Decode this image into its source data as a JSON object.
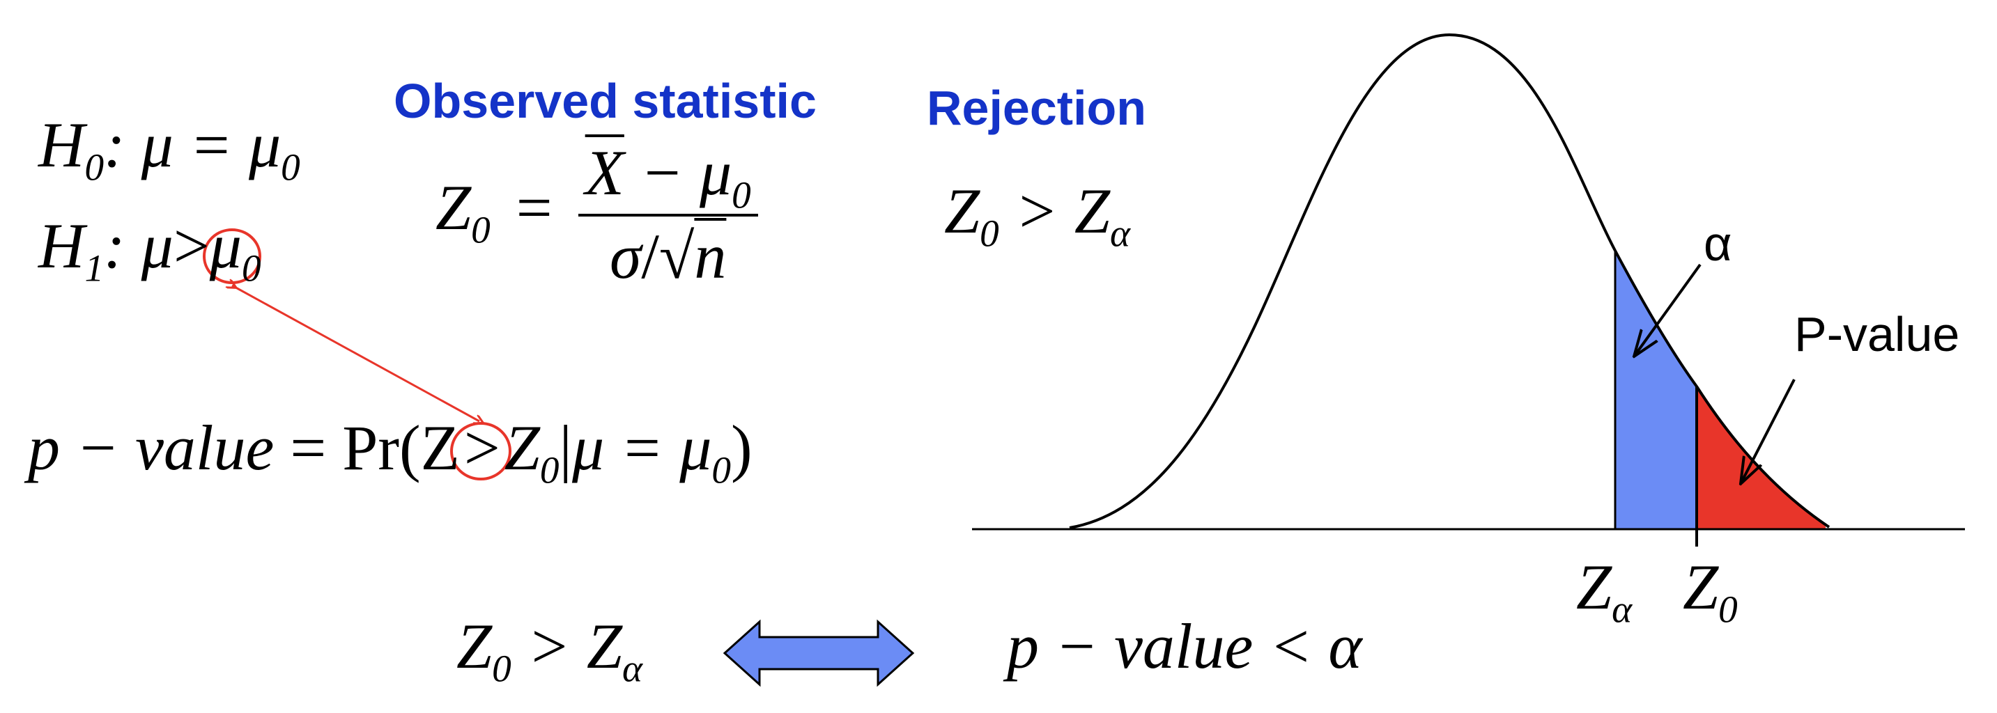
{
  "hypotheses": {
    "h0": {
      "symbol": "H",
      "sub": "0",
      "rel": ": μ = μ",
      "rel_sub": "0"
    },
    "h1": {
      "symbol": "H",
      "sub": "1",
      "rel_pre": ": μ",
      "gt": ">",
      "rel_post": "μ",
      "rel_sub": "0"
    }
  },
  "observed": {
    "heading": "Observed statistic",
    "lhs": "Z",
    "lhs_sub": "0",
    "eq": "=",
    "num_var": "X",
    "num_op": " − μ",
    "num_sub": "0",
    "den_a": "σ",
    "den_slash": "/",
    "den_root": "√",
    "den_n": "n"
  },
  "rejection": {
    "heading": "Rejection",
    "lhs": "Z",
    "lhs_sub": "0",
    "op": " > Z",
    "rhs_sub": "α"
  },
  "pvalue_def": {
    "lhs": "p − value",
    "eq": " = ",
    "pr": "Pr",
    "open": "(Z",
    "gt": ">",
    "z": "Z",
    "z_sub": "0",
    "bar": "|",
    "cond": "μ = μ",
    "cond_sub": "0",
    "close": ")"
  },
  "equivalence": {
    "left": "Z",
    "left_sub": "0",
    "left_op": " > Z",
    "left_rhs_sub": "α",
    "right": "p − value < α"
  },
  "curve_labels": {
    "alpha": "α",
    "pvalue": "P-value",
    "z_alpha": "Z",
    "z_alpha_sub": "α",
    "z_zero": "Z",
    "z_zero_sub": "0"
  },
  "colors": {
    "heading": "#1433c8",
    "alpha_region": "#6b8cf5",
    "pvalue_region": "#e8352a",
    "annotation": "#e8352a",
    "arrow_fill": "#6b8cf5"
  }
}
